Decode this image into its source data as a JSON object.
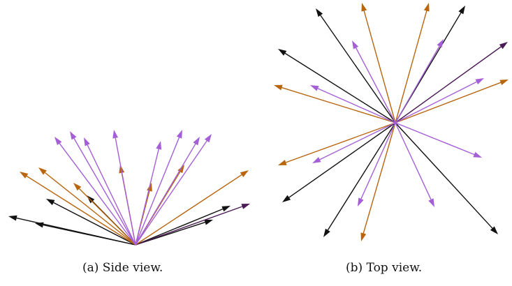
{
  "colors": {
    "black": "#111111",
    "orange": "#b8650e",
    "purple": "#a55fd6",
    "dark_purple": "#4a1a55"
  },
  "panels": [
    {
      "id": "a",
      "caption": "(a) Side view.",
      "view": "side",
      "arrows": [
        {
          "color": "black"
        },
        {
          "color": "black"
        },
        {
          "color": "black"
        },
        {
          "color": "black"
        },
        {
          "color": "black"
        },
        {
          "color": "black"
        },
        {
          "color": "dark_purple"
        },
        {
          "color": "orange"
        },
        {
          "color": "orange"
        },
        {
          "color": "orange"
        },
        {
          "color": "orange"
        },
        {
          "color": "orange"
        },
        {
          "color": "orange"
        },
        {
          "color": "orange"
        },
        {
          "color": "purple"
        },
        {
          "color": "purple"
        },
        {
          "color": "purple"
        },
        {
          "color": "purple"
        },
        {
          "color": "purple"
        },
        {
          "color": "purple"
        },
        {
          "color": "purple"
        },
        {
          "color": "purple"
        }
      ]
    },
    {
      "id": "b",
      "caption": "(b) Top view.",
      "view": "top",
      "arrows": [
        {
          "color": "black"
        },
        {
          "color": "black"
        },
        {
          "color": "black"
        },
        {
          "color": "black"
        },
        {
          "color": "black"
        },
        {
          "color": "black"
        },
        {
          "color": "dark_purple"
        },
        {
          "color": "orange"
        },
        {
          "color": "orange"
        },
        {
          "color": "orange"
        },
        {
          "color": "orange"
        },
        {
          "color": "orange"
        },
        {
          "color": "orange"
        },
        {
          "color": "purple"
        },
        {
          "color": "purple"
        },
        {
          "color": "purple"
        },
        {
          "color": "purple"
        },
        {
          "color": "purple"
        },
        {
          "color": "purple"
        },
        {
          "color": "purple"
        },
        {
          "color": "purple"
        }
      ]
    }
  ]
}
